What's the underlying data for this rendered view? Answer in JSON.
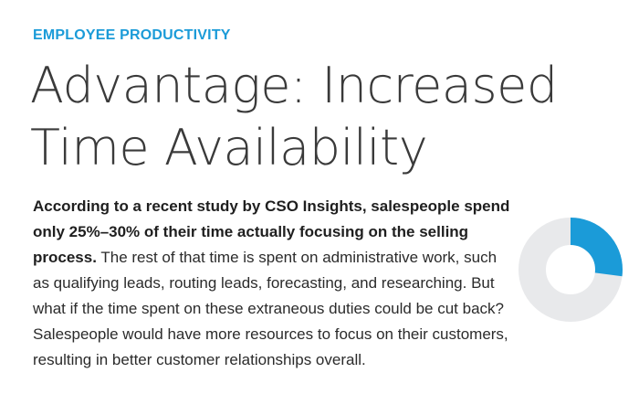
{
  "kicker": "EMPLOYEE PRODUCTIVITY",
  "headline": {
    "line1": "Advantage: Increased",
    "line2": "Time Availability"
  },
  "body": {
    "lead": "According to a recent study by CSO Insights, salespeople spend only 25%–30% of their time actually focusing on the selling process.",
    "rest": " The rest of that time is spent on administrative work, such as qualifying leads, routing leads, forecasting, and researching. But what if the time spent on these extraneous duties could be cut back? Salespeople would have more resources to focus on their customers, resulting in better customer relationships overall."
  },
  "donut": {
    "highlight_fraction": 0.27,
    "highlight_color": "#1b9bd8",
    "track_color": "#e8e9eb"
  }
}
